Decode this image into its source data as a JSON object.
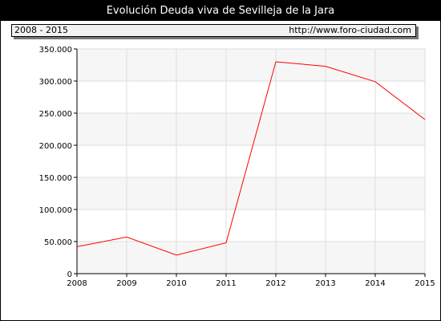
{
  "header": {
    "title": "Evolución Deuda viva de Sevilleja de la Jara",
    "period": "2008 - 2015",
    "url": "http://www.foro-ciudad.com"
  },
  "chart_data": {
    "type": "line",
    "title": "Evolución Deuda viva de Sevilleja de la Jara",
    "xlabel": "",
    "ylabel": "",
    "x": [
      2008,
      2009,
      2010,
      2011,
      2012,
      2013,
      2014,
      2015
    ],
    "y_tick_labels": [
      "0",
      "50.000",
      "100.000",
      "150.000",
      "200.000",
      "250.000",
      "300.000",
      "350.000"
    ],
    "y_ticks": [
      0,
      50000,
      100000,
      150000,
      200000,
      250000,
      300000,
      350000
    ],
    "ylim": [
      0,
      350000
    ],
    "grid": true,
    "series": [
      {
        "values": [
          42000,
          57000,
          29000,
          48000,
          330000,
          323000,
          299000,
          240000
        ],
        "color": "#ff0000"
      }
    ],
    "band_colors": [
      "#f6f6f6",
      "#ffffff"
    ]
  }
}
